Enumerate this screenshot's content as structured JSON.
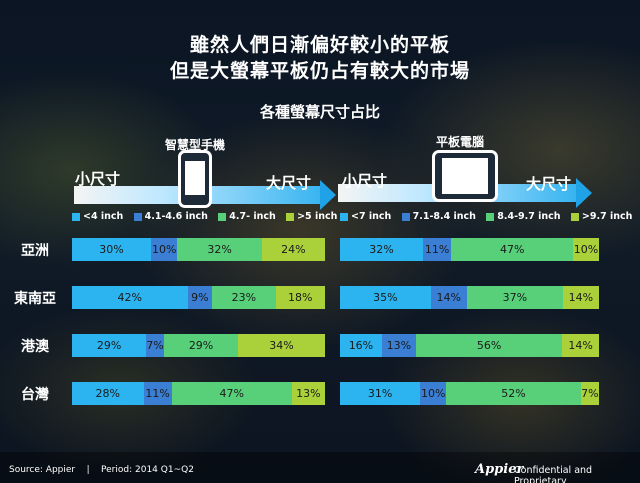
{
  "title_line1": "雖然人們日漸偏好較小的平板",
  "title_line2": "但是大螢幕平板仍占有較大的市場",
  "subtitle": "各種螢幕尺寸占比",
  "colors": {
    "c1": "#2bb4f0",
    "c2": "#3b7fd4",
    "c3": "#58d07a",
    "c4": "#aad13a"
  },
  "left": {
    "device_label": "智慧型手機",
    "small_label": "小尺寸",
    "large_label": "大尺寸",
    "legend": [
      "<4 inch",
      "4.1-4.6 inch",
      "4.7- inch",
      ">5 inch"
    ]
  },
  "right": {
    "device_label": "平板電腦",
    "small_label": "小尺寸",
    "large_label": "大尺寸",
    "legend": [
      "<7 inch",
      "7.1-8.4 inch",
      "8.4-9.7 inch",
      ">9.7 inch"
    ]
  },
  "regions": [
    "亞洲",
    "東南亞",
    "港澳",
    "台灣"
  ],
  "chart_data": [
    {
      "type": "bar",
      "stacked": true,
      "orientation": "horizontal",
      "categories": [
        "亞洲",
        "東南亞",
        "港澳",
        "台灣"
      ],
      "series": [
        {
          "name": "<4 inch",
          "values": [
            30,
            42,
            29,
            28
          ],
          "labels": [
            "30%",
            "42%",
            "29%",
            "28%"
          ]
        },
        {
          "name": "4.1-4.6 inch",
          "values": [
            10,
            9,
            7,
            11
          ],
          "labels": [
            "10%",
            "9%",
            "7%",
            "11%"
          ]
        },
        {
          "name": "4.7- inch",
          "values": [
            32,
            23,
            29,
            47
          ],
          "labels": [
            "32%",
            "23%",
            "29%",
            "47%"
          ]
        },
        {
          "name": ">5 inch",
          "values": [
            24,
            18,
            34,
            13
          ],
          "labels": [
            "24%",
            "18%",
            "34%",
            "13%"
          ]
        }
      ]
    },
    {
      "type": "bar",
      "stacked": true,
      "orientation": "horizontal",
      "categories": [
        "亞洲",
        "東南亞",
        "港澳",
        "台灣"
      ],
      "series": [
        {
          "name": "<7 inch",
          "values": [
            32,
            35,
            16,
            31
          ],
          "labels": [
            "32%",
            "35%",
            "16%",
            "31%"
          ]
        },
        {
          "name": "7.1-8.4 inch",
          "values": [
            11,
            14,
            13,
            10
          ],
          "labels": [
            "11%",
            "14%",
            "13%",
            "10%"
          ]
        },
        {
          "name": "8.4-9.7 inch",
          "values": [
            47,
            37,
            56,
            52
          ],
          "labels": [
            "47%",
            "37%",
            "56%",
            "52%"
          ]
        },
        {
          "name": ">9.7 inch",
          "values": [
            10,
            14,
            14,
            7
          ],
          "labels": [
            "10%",
            "14%",
            "14%",
            "7%"
          ]
        }
      ]
    }
  ],
  "footer": {
    "source": "Source: Appier    |    Period: 2014 Q1~Q2",
    "brand": "Appier",
    "confidential": "Confidential and Proprietary"
  }
}
